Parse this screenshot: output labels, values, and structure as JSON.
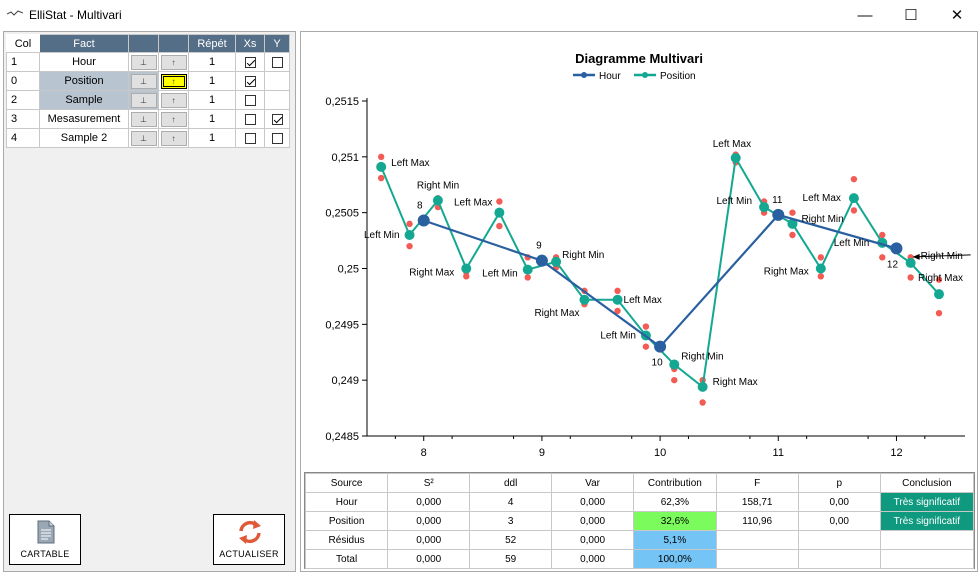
{
  "window": {
    "title": "ElliStat - Multivari",
    "minimize": "—",
    "maximize": "☐",
    "close": "✕"
  },
  "factors": {
    "headers": {
      "col": "Col",
      "fact": "Fact",
      "repet": "Répét",
      "xs": "Xs",
      "y": "Y"
    },
    "rows": [
      {
        "col": "1",
        "name": "Hour",
        "repet": "1",
        "xs": true,
        "y": false,
        "selected": false,
        "highlight": false,
        "has_y": true
      },
      {
        "col": "0",
        "name": "Position",
        "repet": "1",
        "xs": true,
        "y": false,
        "selected": true,
        "highlight": true,
        "has_y": false
      },
      {
        "col": "2",
        "name": "Sample",
        "repet": "1",
        "xs": false,
        "y": false,
        "selected": true,
        "highlight": false,
        "has_y": false
      },
      {
        "col": "3",
        "name": "Mesasurement",
        "repet": "1",
        "xs": false,
        "y": true,
        "selected": false,
        "highlight": false,
        "has_y": true
      },
      {
        "col": "4",
        "name": "Sample 2",
        "repet": "1",
        "xs": false,
        "y": false,
        "selected": false,
        "highlight": false,
        "has_y": true
      }
    ]
  },
  "buttons": {
    "cartable": "CARTABLE",
    "actualiser": "ACTUALISER"
  },
  "chart_data": {
    "type": "line",
    "title": "Diagramme Multivari",
    "legend": [
      "Hour",
      "Position"
    ],
    "legend_position": "top",
    "colors": {
      "hour": "#2a5fa0",
      "position": "#14a892",
      "points": "#f25c54"
    },
    "xticks": [
      "8",
      "9",
      "10",
      "11",
      "12"
    ],
    "yticks": [
      "0,2485",
      "0,249",
      "0,2495",
      "0,25",
      "0,2505",
      "0,251",
      "0,2515"
    ],
    "ylim": [
      0.2485,
      0.2515
    ],
    "hour_series": [
      {
        "x": 8,
        "y": 0.25043,
        "label": "8"
      },
      {
        "x": 9,
        "y": 0.25007,
        "label": "9"
      },
      {
        "x": 10,
        "y": 0.2493,
        "label": "10"
      },
      {
        "x": 11,
        "y": 0.25048,
        "label": "11"
      },
      {
        "x": 12,
        "y": 0.25018,
        "label": "12"
      }
    ],
    "position_series": [
      {
        "x": 7.64,
        "y": 0.25091,
        "label": "Left Max"
      },
      {
        "x": 7.88,
        "y": 0.2503,
        "label": "Left Min"
      },
      {
        "x": 8.12,
        "y": 0.25061,
        "label": "Right Min"
      },
      {
        "x": 8.36,
        "y": 0.25,
        "label": "Right Max"
      },
      {
        "x": 8.64,
        "y": 0.2505,
        "label": "Left Max"
      },
      {
        "x": 8.88,
        "y": 0.24999,
        "label": "Left Min"
      },
      {
        "x": 9.12,
        "y": 0.25006,
        "label": "Right Min"
      },
      {
        "x": 9.36,
        "y": 0.24972,
        "label": "Right Max"
      },
      {
        "x": 9.64,
        "y": 0.24972,
        "label": "Left Max"
      },
      {
        "x": 9.88,
        "y": 0.2494,
        "label": "Left Min"
      },
      {
        "x": 10.12,
        "y": 0.24914,
        "label": "Right Min"
      },
      {
        "x": 10.36,
        "y": 0.24894,
        "label": "Right Max"
      },
      {
        "x": 10.64,
        "y": 0.25099,
        "label": "Left Max"
      },
      {
        "x": 10.88,
        "y": 0.25055,
        "label": "Left Min"
      },
      {
        "x": 11.12,
        "y": 0.2504,
        "label": "Right Min"
      },
      {
        "x": 11.36,
        "y": 0.25,
        "label": "Right Max"
      },
      {
        "x": 11.64,
        "y": 0.25063,
        "label": "Left Max"
      },
      {
        "x": 11.88,
        "y": 0.25023,
        "label": "Left Min"
      },
      {
        "x": 12.12,
        "y": 0.25005,
        "label": "Right Min"
      },
      {
        "x": 12.36,
        "y": 0.24977,
        "label": "Right Max"
      }
    ],
    "raw_points": [
      [
        7.64,
        0.251
      ],
      [
        7.64,
        0.25081
      ],
      [
        7.88,
        0.2504
      ],
      [
        7.88,
        0.2502
      ],
      [
        8.12,
        0.25063
      ],
      [
        8.12,
        0.25055
      ],
      [
        8.36,
        0.24997
      ],
      [
        8.36,
        0.24993
      ],
      [
        8.64,
        0.2506
      ],
      [
        8.64,
        0.25038
      ],
      [
        8.88,
        0.2501
      ],
      [
        8.88,
        0.24992
      ],
      [
        9.12,
        0.2501
      ],
      [
        9.12,
        0.25001
      ],
      [
        9.36,
        0.2498
      ],
      [
        9.36,
        0.24968
      ],
      [
        9.64,
        0.2498
      ],
      [
        9.64,
        0.24962
      ],
      [
        9.88,
        0.24948
      ],
      [
        9.88,
        0.2493
      ],
      [
        10.12,
        0.2491
      ],
      [
        10.12,
        0.249
      ],
      [
        10.36,
        0.249
      ],
      [
        10.36,
        0.2488
      ],
      [
        10.64,
        0.25102
      ],
      [
        10.64,
        0.25095
      ],
      [
        10.88,
        0.2506
      ],
      [
        10.88,
        0.2505
      ],
      [
        11.12,
        0.2505
      ],
      [
        11.12,
        0.2503
      ],
      [
        11.36,
        0.2501
      ],
      [
        11.36,
        0.24993
      ],
      [
        11.64,
        0.2508
      ],
      [
        11.64,
        0.25052
      ],
      [
        11.88,
        0.2503
      ],
      [
        11.88,
        0.2501
      ],
      [
        12.12,
        0.2501
      ],
      [
        12.12,
        0.24992
      ],
      [
        12.36,
        0.2499
      ],
      [
        12.36,
        0.2496
      ]
    ]
  },
  "anova": {
    "headers": [
      "Source",
      "S²",
      "ddl",
      "Var",
      "Contribution",
      "F",
      "p",
      "Conclusion"
    ],
    "rows": [
      [
        "Hour",
        "0,000",
        "4",
        "0,000",
        "62,3%",
        "158,71",
        "0,00",
        "Très significatif"
      ],
      [
        "Position",
        "0,000",
        "3",
        "0,000",
        "32,6%",
        "110,96",
        "0,00",
        "Très significatif"
      ],
      [
        "Résidus",
        "0,000",
        "52",
        "0,000",
        "5,1%",
        "",
        "",
        ""
      ],
      [
        "Total",
        "0,000",
        "59",
        "0,000",
        "100,0%",
        "",
        "",
        ""
      ]
    ]
  }
}
